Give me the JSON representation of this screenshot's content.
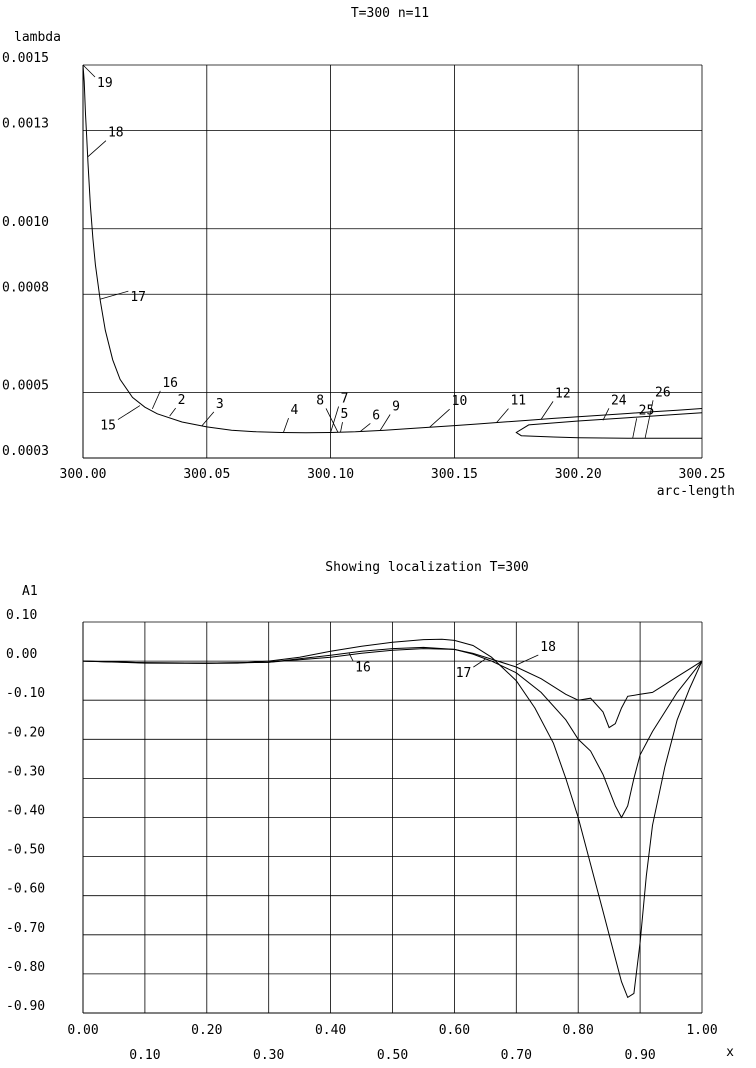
{
  "chart_data": [
    {
      "type": "line",
      "title": "T=300 n=11",
      "xlabel": "arc-length",
      "ylabel": "lambda",
      "xlim": [
        300.0,
        300.25
      ],
      "ylim": [
        0.0003,
        0.0015
      ],
      "grid": true,
      "x_ticks": [
        300.0,
        300.05,
        300.1,
        300.15,
        300.2,
        300.25
      ],
      "x_tick_labels": [
        "300.00",
        "300.05",
        "300.10",
        "300.15",
        "300.20",
        "300.25"
      ],
      "y_ticks": [
        0.0003,
        0.0005,
        0.0008,
        0.001,
        0.0013,
        0.0015
      ],
      "y_tick_labels": [
        "0.0003",
        "0.0005",
        "0.0008",
        "0.0010",
        "0.0013",
        "0.0015"
      ],
      "series": [
        {
          "x": [
            300.0,
            300.0005,
            300.001,
            300.0015,
            300.002,
            300.003,
            300.004,
            300.005,
            300.007,
            300.009,
            300.012,
            300.015,
            300.02,
            300.025,
            300.03,
            300.04,
            300.05,
            300.06,
            300.07,
            300.08,
            300.09,
            300.1,
            300.11,
            300.12,
            300.13,
            300.14,
            300.15,
            300.16,
            300.17,
            300.18,
            300.19,
            300.2,
            300.21,
            300.22,
            300.23,
            300.24,
            300.25
          ],
          "y": [
            0.0015,
            0.00145,
            0.00135,
            0.00128,
            0.0012,
            0.00107,
            0.00097,
            0.00089,
            0.00078,
            0.00069,
            0.0006,
            0.00054,
            0.000485,
            0.000455,
            0.000435,
            0.00041,
            0.000395,
            0.000385,
            0.00038,
            0.000378,
            0.000377,
            0.000378,
            0.00038,
            0.000384,
            0.000389,
            0.000394,
            0.000399,
            0.000404,
            0.00041,
            0.000415,
            0.000421,
            0.000426,
            0.000431,
            0.000436,
            0.000441,
            0.000446,
            0.000451
          ]
        },
        {
          "x": [
            300.25,
            300.24,
            300.22,
            300.2,
            300.18,
            300.175,
            300.177,
            300.19,
            300.2,
            300.21,
            300.22,
            300.23,
            300.24,
            300.25
          ],
          "y": [
            0.000438,
            0.000433,
            0.000423,
            0.000413,
            0.000401,
            0.000378,
            0.000368,
            0.000364,
            0.000362,
            0.000361,
            0.00036,
            0.00036,
            0.00036,
            0.00036
          ]
        }
      ],
      "annotations": [
        {
          "text": "19",
          "x": 300.0,
          "y": 0.0015
        },
        {
          "text": "18",
          "x": 300.002,
          "y": 0.00122
        },
        {
          "text": "17",
          "x": 300.007,
          "y": 0.000785
        },
        {
          "text": "16",
          "x": 300.028,
          "y": 0.00045
        },
        {
          "text": "2",
          "x": 300.035,
          "y": 0.000428
        },
        {
          "text": "15",
          "x": 300.023,
          "y": 0.00046
        },
        {
          "text": "3",
          "x": 300.048,
          "y": 0.000398
        },
        {
          "text": "4",
          "x": 300.081,
          "y": 0.000379
        },
        {
          "text": "8",
          "x": 300.103,
          "y": 0.000378
        },
        {
          "text": "7",
          "x": 300.1,
          "y": 0.000378
        },
        {
          "text": "5",
          "x": 300.104,
          "y": 0.000379
        },
        {
          "text": "6",
          "x": 300.112,
          "y": 0.000381
        },
        {
          "text": "9",
          "x": 300.12,
          "y": 0.000384
        },
        {
          "text": "10",
          "x": 300.14,
          "y": 0.000394
        },
        {
          "text": "11",
          "x": 300.167,
          "y": 0.000408
        },
        {
          "text": "12",
          "x": 300.185,
          "y": 0.000418
        },
        {
          "text": "24",
          "x": 300.21,
          "y": 0.000415
        },
        {
          "text": "25",
          "x": 300.222,
          "y": 0.00036
        },
        {
          "text": "26",
          "x": 300.227,
          "y": 0.00036
        }
      ]
    },
    {
      "type": "line",
      "title": "Showing localization T=300",
      "xlabel": "x",
      "ylabel": "A1",
      "xlim": [
        0.0,
        1.0
      ],
      "ylim": [
        -0.9,
        0.1
      ],
      "grid": true,
      "x_ticks": [
        0.0,
        0.1,
        0.2,
        0.3,
        0.4,
        0.5,
        0.6,
        0.7,
        0.8,
        0.9,
        1.0
      ],
      "x_tick_labels": [
        "0.00",
        "0.10",
        "0.20",
        "0.30",
        "0.40",
        "0.50",
        "0.60",
        "0.70",
        "0.80",
        "0.90",
        "1.00"
      ],
      "y_ticks": [
        0.1,
        0.0,
        -0.1,
        -0.2,
        -0.3,
        -0.4,
        -0.5,
        -0.6,
        -0.7,
        -0.8,
        -0.9
      ],
      "y_tick_labels": [
        "0.10",
        "0.00",
        "-0.10",
        "-0.20",
        "-0.30",
        "-0.40",
        "-0.50",
        "-0.60",
        "-0.70",
        "-0.80",
        "-0.90"
      ],
      "series": [
        {
          "x": [
            0.0,
            0.1,
            0.2,
            0.25,
            0.3,
            0.35,
            0.4,
            0.45,
            0.5,
            0.55,
            0.58,
            0.6,
            0.63,
            0.66,
            0.7,
            0.73,
            0.76,
            0.78,
            0.8,
            0.82,
            0.84,
            0.86,
            0.87,
            0.88,
            0.89,
            0.9,
            0.91,
            0.92,
            0.94,
            0.96,
            0.98,
            1.0
          ],
          "y": [
            0.0,
            -0.005,
            -0.006,
            -0.005,
            0.0,
            0.01,
            0.025,
            0.038,
            0.048,
            0.055,
            0.056,
            0.053,
            0.04,
            0.01,
            -0.05,
            -0.12,
            -0.21,
            -0.3,
            -0.4,
            -0.52,
            -0.64,
            -0.76,
            -0.82,
            -0.86,
            -0.85,
            -0.72,
            -0.55,
            -0.42,
            -0.27,
            -0.15,
            -0.07,
            0.0
          ]
        },
        {
          "x": [
            0.0,
            0.1,
            0.2,
            0.3,
            0.4,
            0.45,
            0.5,
            0.55,
            0.6,
            0.63,
            0.66,
            0.7,
            0.74,
            0.78,
            0.8,
            0.82,
            0.84,
            0.86,
            0.87,
            0.88,
            0.89,
            0.9,
            0.92,
            0.94,
            0.96,
            0.98,
            1.0
          ],
          "y": [
            0.0,
            -0.004,
            -0.005,
            -0.003,
            0.015,
            0.025,
            0.032,
            0.035,
            0.03,
            0.018,
            0.0,
            -0.03,
            -0.08,
            -0.15,
            -0.2,
            -0.23,
            -0.29,
            -0.37,
            -0.4,
            -0.37,
            -0.3,
            -0.24,
            -0.18,
            -0.13,
            -0.08,
            -0.04,
            0.0
          ]
        },
        {
          "x": [
            0.0,
            0.1,
            0.2,
            0.3,
            0.4,
            0.45,
            0.5,
            0.55,
            0.6,
            0.63,
            0.66,
            0.7,
            0.74,
            0.78,
            0.8,
            0.82,
            0.84,
            0.85,
            0.86,
            0.87,
            0.88,
            0.9,
            0.92,
            0.94,
            0.96,
            0.98,
            1.0
          ],
          "y": [
            0.0,
            -0.004,
            -0.005,
            -0.003,
            0.01,
            0.02,
            0.028,
            0.032,
            0.03,
            0.02,
            0.005,
            -0.015,
            -0.045,
            -0.085,
            -0.1,
            -0.095,
            -0.13,
            -0.17,
            -0.16,
            -0.12,
            -0.09,
            -0.085,
            -0.08,
            -0.06,
            -0.04,
            -0.02,
            0.0
          ]
        }
      ],
      "annotations": [
        {
          "text": "16",
          "x": 0.43,
          "y": 0.02
        },
        {
          "text": "17",
          "x": 0.65,
          "y": 0.005
        },
        {
          "text": "18",
          "x": 0.7,
          "y": -0.01
        }
      ]
    }
  ]
}
